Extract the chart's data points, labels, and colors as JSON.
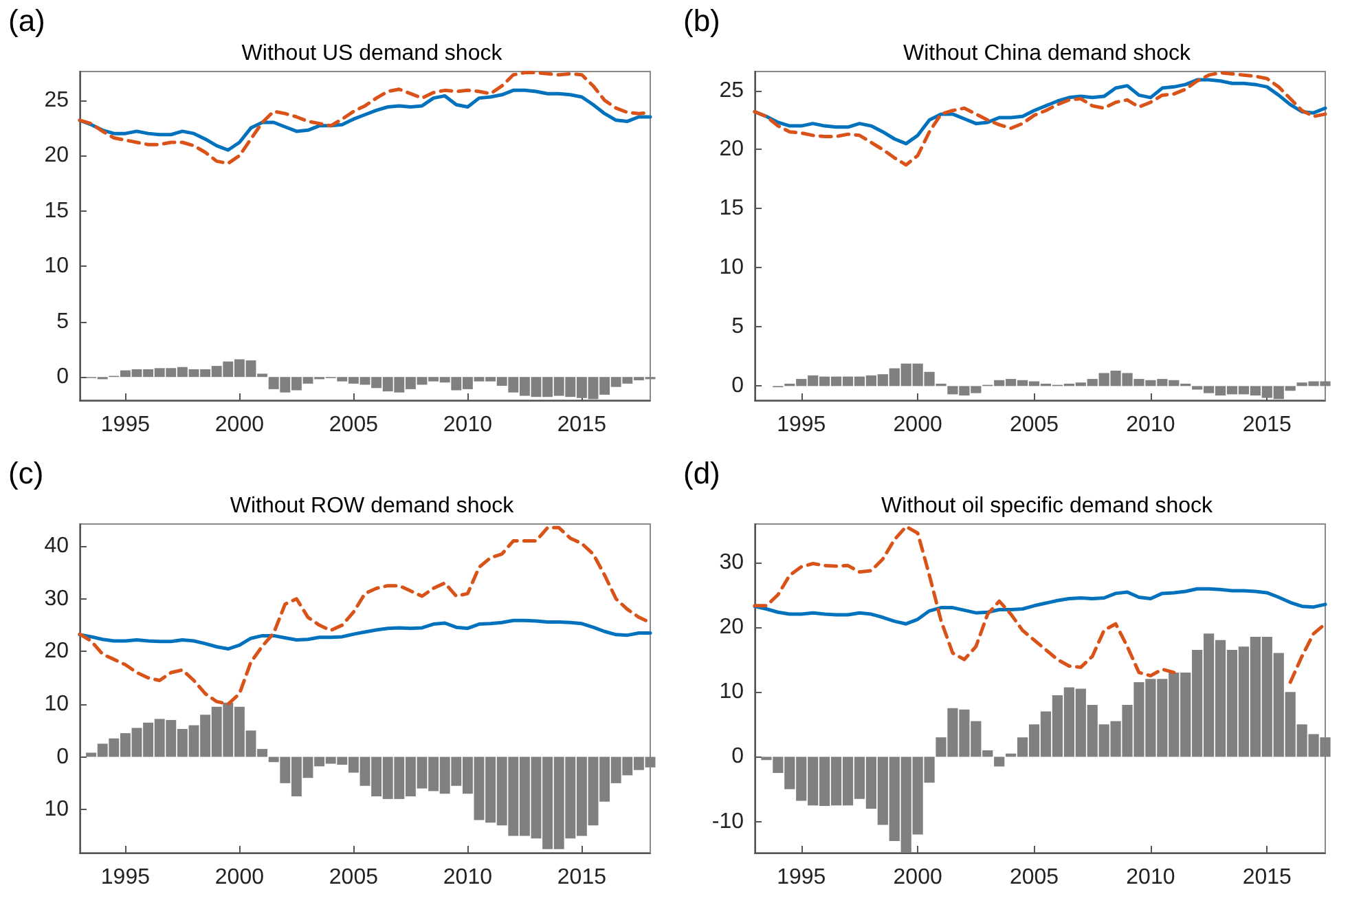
{
  "chart_data": [
    {
      "type": "line",
      "title": "Without US demand shock",
      "annotations": [
        "(a)"
      ],
      "marker": "none",
      "grid": false,
      "x": [
        1993,
        1993.5,
        1994,
        1994.5,
        1995,
        1995.5,
        1996,
        1996.5,
        1997,
        1997.5,
        1998,
        1998.5,
        1999,
        1999.5,
        2000,
        2000.5,
        2001,
        2001.5,
        2002,
        2002.5,
        2003,
        2003.5,
        2004,
        2004.5,
        2005,
        2005.5,
        2006,
        2006.5,
        2007,
        2007.5,
        2008,
        2008.5,
        2009,
        2009.5,
        2010,
        2010.5,
        2011,
        2011.5,
        2012,
        2012.5,
        2013,
        2013.5,
        2014,
        2014.5,
        2015,
        2015.5,
        2016,
        2016.5,
        2017,
        2017.5,
        2018
      ],
      "xlim": [
        1993,
        2018
      ],
      "xticks": [
        1995,
        2000,
        2005,
        2010,
        2015
      ],
      "ylim": [
        -2.1,
        27.6
      ],
      "yticks": [
        0,
        5,
        10,
        15,
        20,
        25
      ],
      "series": [
        {
          "type": "bar",
          "color": "#808080",
          "values": [
            0,
            -0.1,
            -0.2,
            0.1,
            0.6,
            0.7,
            0.7,
            0.8,
            0.8,
            0.9,
            0.7,
            0.7,
            1.0,
            1.4,
            1.6,
            1.5,
            0.3,
            -1.1,
            -1.4,
            -1.2,
            -0.6,
            -0.2,
            -0.1,
            -0.4,
            -0.6,
            -0.7,
            -1.0,
            -1.3,
            -1.4,
            -1.1,
            -0.7,
            -0.4,
            -0.5,
            -1.2,
            -1.1,
            -0.4,
            -0.4,
            -0.8,
            -1.4,
            -1.7,
            -1.8,
            -1.8,
            -1.7,
            -1.8,
            -1.9,
            -2.0,
            -1.6,
            -0.9,
            -0.6,
            -0.3,
            -0.2
          ]
        },
        {
          "color": "#0072bd",
          "line_style": "solid",
          "values": [
            23.2,
            22.8,
            22.3,
            22.0,
            22.0,
            22.2,
            22.0,
            21.9,
            21.9,
            22.2,
            22.0,
            21.5,
            20.9,
            20.5,
            21.2,
            22.5,
            23.0,
            23.0,
            22.6,
            22.2,
            22.3,
            22.7,
            22.7,
            22.8,
            23.3,
            23.7,
            24.1,
            24.4,
            24.5,
            24.4,
            24.5,
            25.2,
            25.4,
            24.6,
            24.4,
            25.2,
            25.3,
            25.5,
            25.9,
            25.9,
            25.8,
            25.6,
            25.6,
            25.5,
            25.3,
            24.6,
            23.8,
            23.2,
            23.1,
            23.5,
            23.5
          ]
        },
        {
          "color": "#d95319",
          "line_style": "dashed",
          "values": [
            23.2,
            22.9,
            22.2,
            21.6,
            21.4,
            21.2,
            21.0,
            21.0,
            21.2,
            21.2,
            20.9,
            20.3,
            19.5,
            19.3,
            20.0,
            21.5,
            23.0,
            24.0,
            23.8,
            23.5,
            23.1,
            22.9,
            22.7,
            23.3,
            24.0,
            24.5,
            25.2,
            25.8,
            26.0,
            25.6,
            25.2,
            25.7,
            25.9,
            25.8,
            25.9,
            25.8,
            25.6,
            26.3,
            27.3,
            27.5,
            27.5,
            27.4,
            27.3,
            27.4,
            27.3,
            26.3,
            25.0,
            24.3,
            23.9,
            23.8,
            23.9
          ]
        }
      ]
    },
    {
      "type": "line",
      "title": "Without China demand shock",
      "annotations": [
        "(b)"
      ],
      "marker": "none",
      "grid": false,
      "x": [
        1993,
        1993.5,
        1994,
        1994.5,
        1995,
        1995.5,
        1996,
        1996.5,
        1997,
        1997.5,
        1998,
        1998.5,
        1999,
        1999.5,
        2000,
        2000.5,
        2001,
        2001.5,
        2002,
        2002.5,
        2003,
        2003.5,
        2004,
        2004.5,
        2005,
        2005.5,
        2006,
        2006.5,
        2007,
        2007.5,
        2008,
        2008.5,
        2009,
        2009.5,
        2010,
        2010.5,
        2011,
        2011.5,
        2012,
        2012.5,
        2013,
        2013.5,
        2014,
        2014.5,
        2015,
        2015.5,
        2016,
        2016.5,
        2017,
        2017.5
      ],
      "xlim": [
        1993,
        2017.5
      ],
      "xticks": [
        1995,
        2000,
        2005,
        2010,
        2015
      ],
      "ylim": [
        -1.2,
        26.6
      ],
      "yticks": [
        0,
        5,
        10,
        15,
        20,
        25
      ],
      "series": [
        {
          "type": "bar",
          "color": "#808080",
          "values": [
            0,
            0,
            -0.1,
            0.2,
            0.6,
            0.9,
            0.8,
            0.8,
            0.8,
            0.8,
            0.9,
            1.0,
            1.5,
            1.9,
            1.9,
            1.2,
            0.2,
            -0.7,
            -0.8,
            -0.6,
            0.1,
            0.5,
            0.6,
            0.5,
            0.4,
            0.2,
            0.1,
            0.2,
            0.3,
            0.6,
            1.1,
            1.3,
            1.1,
            0.6,
            0.5,
            0.6,
            0.5,
            0.2,
            -0.3,
            -0.6,
            -0.8,
            -0.7,
            -0.7,
            -0.8,
            -1.0,
            -1.1,
            -0.4,
            0.3,
            0.4,
            0.4
          ]
        },
        {
          "color": "#0072bd",
          "line_style": "solid",
          "values": [
            23.2,
            22.8,
            22.3,
            22.0,
            22.0,
            22.2,
            22.0,
            21.9,
            21.9,
            22.2,
            22.0,
            21.5,
            20.9,
            20.5,
            21.2,
            22.5,
            23.0,
            23.0,
            22.6,
            22.2,
            22.3,
            22.7,
            22.7,
            22.8,
            23.3,
            23.7,
            24.1,
            24.4,
            24.5,
            24.4,
            24.5,
            25.2,
            25.4,
            24.6,
            24.4,
            25.2,
            25.3,
            25.5,
            25.9,
            25.9,
            25.8,
            25.6,
            25.6,
            25.5,
            25.3,
            24.6,
            23.8,
            23.2,
            23.1,
            23.5
          ]
        },
        {
          "color": "#d95319",
          "line_style": "dashed",
          "values": [
            23.2,
            22.8,
            22.0,
            21.5,
            21.4,
            21.2,
            21.1,
            21.1,
            21.3,
            21.2,
            20.6,
            20.0,
            19.3,
            18.7,
            19.5,
            21.5,
            23.0,
            23.3,
            23.5,
            23.0,
            22.5,
            22.1,
            21.8,
            22.2,
            22.9,
            23.3,
            23.8,
            24.2,
            24.3,
            23.7,
            23.5,
            24.0,
            24.2,
            23.6,
            24.0,
            24.6,
            24.7,
            25.1,
            25.8,
            26.3,
            26.5,
            26.4,
            26.3,
            26.2,
            26.0,
            25.3,
            24.3,
            23.3,
            22.8,
            23.0
          ]
        }
      ]
    },
    {
      "type": "line",
      "title": "Without ROW demand shock",
      "annotations": [
        "(c)"
      ],
      "marker": "none",
      "grid": false,
      "x": [
        1993,
        1993.5,
        1994,
        1994.5,
        1995,
        1995.5,
        1996,
        1996.5,
        1997,
        1997.5,
        1998,
        1998.5,
        1999,
        1999.5,
        2000,
        2000.5,
        2001,
        2001.5,
        2002,
        2002.5,
        2003,
        2003.5,
        2004,
        2004.5,
        2005,
        2005.5,
        2006,
        2006.5,
        2007,
        2007.5,
        2008,
        2008.5,
        2009,
        2009.5,
        2010,
        2010.5,
        2011,
        2011.5,
        2012,
        2012.5,
        2013,
        2013.5,
        2014,
        2014.5,
        2015,
        2015.5,
        2016,
        2016.5,
        2017,
        2017.5,
        2018
      ],
      "xlim": [
        1993,
        2018
      ],
      "xticks": [
        1995,
        2000,
        2005,
        2010,
        2015
      ],
      "ylim": [
        -18.2,
        44.2
      ],
      "yticks": [
        {
          "value": -10,
          "label": "10"
        },
        0,
        10,
        20,
        30,
        40
      ],
      "series": [
        {
          "type": "bar",
          "color": "#808080",
          "values": [
            0,
            0.8,
            2.5,
            3.5,
            4.5,
            5.5,
            6.5,
            7.2,
            7.0,
            5.3,
            6.0,
            8.0,
            9.5,
            10.3,
            9.5,
            5.0,
            1.5,
            -1.0,
            -5.0,
            -7.5,
            -4.0,
            -1.8,
            -1.3,
            -1.5,
            -3.0,
            -5.5,
            -7.5,
            -8.0,
            -8.0,
            -7.5,
            -6.0,
            -6.5,
            -7.0,
            -5.5,
            -7.0,
            -12.0,
            -12.5,
            -13.0,
            -15.0,
            -15.0,
            -15.5,
            -17.5,
            -17.5,
            -15.5,
            -15.0,
            -13.0,
            -8.5,
            -5.0,
            -3.5,
            -2.5,
            -2.0
          ]
        },
        {
          "color": "#0072bd",
          "line_style": "solid",
          "values": [
            23.2,
            22.8,
            22.3,
            22.0,
            22.0,
            22.2,
            22.0,
            21.9,
            21.9,
            22.2,
            22.0,
            21.5,
            20.9,
            20.5,
            21.2,
            22.5,
            23.0,
            23.0,
            22.6,
            22.2,
            22.3,
            22.7,
            22.7,
            22.8,
            23.3,
            23.7,
            24.1,
            24.4,
            24.5,
            24.4,
            24.5,
            25.2,
            25.4,
            24.6,
            24.4,
            25.2,
            25.3,
            25.5,
            25.9,
            25.9,
            25.8,
            25.6,
            25.6,
            25.5,
            25.3,
            24.6,
            23.8,
            23.2,
            23.1,
            23.5,
            23.5
          ]
        },
        {
          "color": "#d95319",
          "line_style": "dashed",
          "values": [
            23.3,
            22.0,
            19.5,
            18.5,
            17.5,
            16.0,
            15.0,
            14.5,
            16.0,
            16.5,
            14.5,
            12.0,
            10.5,
            10.0,
            12.0,
            18.0,
            21.0,
            23.5,
            29.0,
            30.0,
            26.5,
            25.0,
            24.0,
            25.0,
            27.5,
            31.0,
            32.0,
            32.5,
            32.5,
            31.5,
            30.5,
            32.0,
            33.0,
            30.5,
            31.0,
            36.0,
            37.8,
            38.5,
            41.0,
            41.0,
            41.0,
            43.5,
            43.5,
            41.5,
            40.5,
            38.5,
            34.5,
            30.0,
            28.0,
            26.5,
            25.5
          ]
        }
      ]
    },
    {
      "type": "line",
      "title": "Without oil specific demand shock",
      "annotations": [
        "(d)"
      ],
      "marker": "none",
      "grid": false,
      "x": [
        1993,
        1993.5,
        1994,
        1994.5,
        1995,
        1995.5,
        1996,
        1996.5,
        1997,
        1997.5,
        1998,
        1998.5,
        1999,
        1999.5,
        2000,
        2000.5,
        2001,
        2001.5,
        2002,
        2002.5,
        2003,
        2003.5,
        2004,
        2004.5,
        2005,
        2005.5,
        2006,
        2006.5,
        2007,
        2007.5,
        2008,
        2008.5,
        2009,
        2009.5,
        2010,
        2010.5,
        2011,
        2011.5,
        2012,
        2012.5,
        2013,
        2013.5,
        2014,
        2014.5,
        2015,
        2015.5,
        2016,
        2016.5,
        2017,
        2017.5
      ],
      "xlim": [
        1993,
        2017.5
      ],
      "xticks": [
        1995,
        2000,
        2005,
        2010,
        2015
      ],
      "ylim": [
        -14.8,
        35.9
      ],
      "yticks": [
        -10,
        0,
        10,
        20,
        30
      ],
      "series": [
        {
          "type": "bar",
          "color": "#808080",
          "values": [
            0,
            -0.5,
            -2.5,
            -5.0,
            -6.8,
            -7.5,
            -7.6,
            -7.5,
            -7.5,
            -6.5,
            -8.0,
            -10.5,
            -13.0,
            -14.8,
            -12.0,
            -4.0,
            3.0,
            7.5,
            7.3,
            5.5,
            1.0,
            -1.5,
            0.5,
            3.0,
            5.0,
            7.0,
            9.5,
            10.7,
            10.5,
            8.0,
            5.0,
            5.5,
            8.0,
            11.5,
            12.0,
            12.0,
            13.0,
            13.0,
            16.5,
            19.0,
            18.0,
            16.5,
            17.0,
            18.5,
            18.5,
            16.0,
            10.0,
            5.0,
            3.5,
            3.0
          ]
        },
        {
          "color": "#0072bd",
          "line_style": "solid",
          "values": [
            23.2,
            22.8,
            22.3,
            22.0,
            22.0,
            22.2,
            22.0,
            21.9,
            21.9,
            22.2,
            22.0,
            21.5,
            20.9,
            20.5,
            21.2,
            22.5,
            23.0,
            23.0,
            22.6,
            22.2,
            22.3,
            22.7,
            22.7,
            22.8,
            23.3,
            23.7,
            24.1,
            24.4,
            24.5,
            24.4,
            24.5,
            25.2,
            25.4,
            24.6,
            24.4,
            25.2,
            25.3,
            25.5,
            25.9,
            25.9,
            25.8,
            25.6,
            25.6,
            25.5,
            25.3,
            24.6,
            23.8,
            23.2,
            23.1,
            23.5
          ]
        },
        {
          "color": "#d95319",
          "line_style": "dashed",
          "values": [
            23.3,
            23.3,
            25.0,
            28.0,
            29.3,
            29.8,
            29.5,
            29.4,
            29.5,
            28.5,
            28.7,
            30.5,
            33.5,
            35.5,
            34.5,
            28.0,
            21.0,
            16.0,
            15.0,
            17.0,
            22.0,
            24.0,
            22.0,
            19.5,
            18.0,
            16.5,
            15.0,
            14.0,
            13.8,
            15.5,
            19.5,
            20.5,
            17.0,
            13.0,
            12.5,
            13.5,
            13.0,
            null,
            null,
            null,
            null,
            null,
            null,
            null,
            null,
            null,
            11.5,
            15.5,
            19.0,
            20.5
          ]
        }
      ]
    }
  ]
}
